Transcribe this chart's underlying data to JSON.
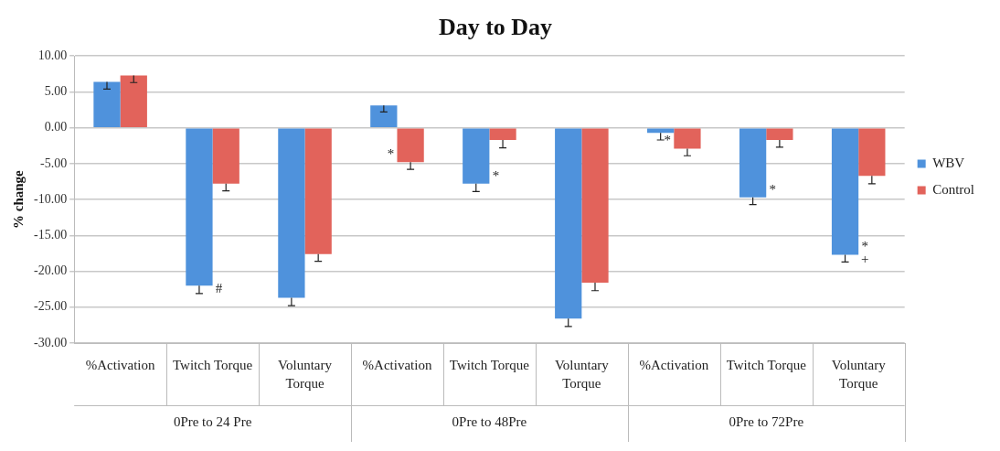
{
  "chart_data": {
    "type": "bar",
    "title": "Day to Day",
    "ylabel": "% change",
    "categories": [
      "%Activation",
      "Twitch Torque",
      "Voluntary Torque",
      "%Activation",
      "Twitch Torque",
      "Voluntary Torque",
      "%Activation",
      "Twitch Torque",
      "Voluntary Torque"
    ],
    "series": [
      {
        "name": "WBV",
        "color": "#4f92dc",
        "values": [
          6.4,
          -22.0,
          -23.7,
          3.1,
          -7.8,
          -26.6,
          -0.7,
          -9.7,
          -17.7
        ],
        "errors": [
          [
            5.4,
            6.4
          ],
          [
            -23.1,
            -22.0
          ],
          [
            -24.8,
            -23.7
          ],
          [
            2.2,
            3.1
          ],
          [
            -8.9,
            -7.8
          ],
          [
            -27.7,
            -26.6
          ],
          [
            -1.7,
            -0.7
          ],
          [
            -10.7,
            -9.7
          ],
          [
            -18.7,
            -17.7
          ]
        ]
      },
      {
        "name": "Control",
        "color": "#e2635b",
        "values": [
          7.3,
          -7.8,
          -17.6,
          -4.8,
          -1.7,
          -21.6,
          -2.9,
          -1.7,
          -6.7
        ],
        "errors": [
          [
            6.3,
            7.3
          ],
          [
            -8.8,
            -7.8
          ],
          [
            -18.6,
            -17.6
          ],
          [
            -5.8,
            -4.8
          ],
          [
            -2.8,
            -1.7
          ],
          [
            -22.7,
            -21.6
          ],
          [
            -3.9,
            -2.9
          ],
          [
            -2.7,
            -1.7
          ],
          [
            -7.8,
            -6.7
          ]
        ]
      }
    ],
    "ylim": [
      -30,
      10
    ],
    "yticks": [
      {
        "value": -30,
        "label": "-30.00"
      },
      {
        "value": -25,
        "label": "-25.00"
      },
      {
        "value": -20,
        "label": "-20.00"
      },
      {
        "value": -15,
        "label": "-15.00"
      },
      {
        "value": -10,
        "label": "-10.00"
      },
      {
        "value": -5,
        "label": "-5.00"
      },
      {
        "value": 0,
        "label": "0.00"
      },
      {
        "value": 5,
        "label": "5.00"
      },
      {
        "value": 10,
        "label": "10.00"
      }
    ],
    "grid": "y",
    "legend": "right",
    "annotations": [
      "0Pre to 24 Pre",
      "0Pre to 48Pre",
      "0Pre to 72Pre",
      {
        "text": "#",
        "x": "Twitch Torque",
        "y": -22.0
      },
      "*",
      "*",
      "*",
      "*",
      "*",
      "+"
    ]
  }
}
